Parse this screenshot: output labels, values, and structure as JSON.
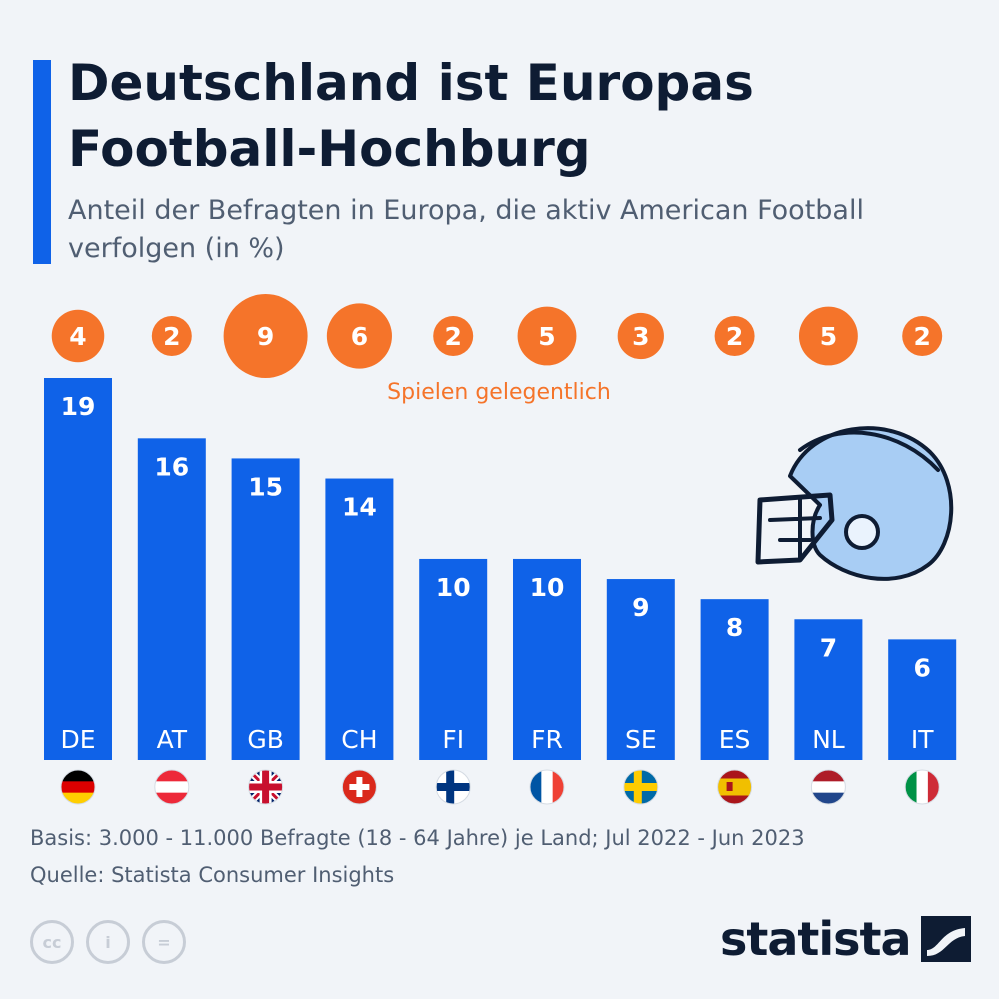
{
  "title": "Deutschland ist Europas Football-Hochburg",
  "subtitle": "Anteil der Befragten in Europa, die aktiv American Football verfolgen (in %)",
  "circle_legend": "Spielen gelegentlich",
  "basis": "Basis: 3.000 - 11.000 Befragte (18 - 64 Jahre) je Land; Jul 2022 - Jun 2023",
  "source": "Quelle: Statista Consumer Insights",
  "brand": "statista",
  "colors": {
    "bar": "#0f62e8",
    "circle": "#f5742a",
    "title": "#0e1c33",
    "helmet": "#a8cdf4"
  },
  "cc_icons": [
    "cc-icon",
    "person-icon",
    "equals-icon"
  ],
  "cc_icon_labels": [
    "cc",
    "i",
    "="
  ],
  "chart_data": {
    "type": "bar",
    "categories": [
      "DE",
      "AT",
      "GB",
      "CH",
      "FI",
      "FR",
      "SE",
      "ES",
      "NL",
      "IT"
    ],
    "series": [
      {
        "values": [
          19,
          16,
          15,
          14,
          10,
          10,
          9,
          8,
          7,
          6
        ]
      },
      {
        "name": "Spielen gelegentlich",
        "values": [
          4,
          2,
          9,
          6,
          2,
          5,
          3,
          2,
          5,
          2
        ]
      }
    ],
    "flags": [
      "flag-germany",
      "flag-austria",
      "flag-uk",
      "flag-switzerland",
      "flag-finland",
      "flag-france",
      "flag-sweden",
      "flag-spain",
      "flag-netherlands",
      "flag-italy"
    ]
  }
}
